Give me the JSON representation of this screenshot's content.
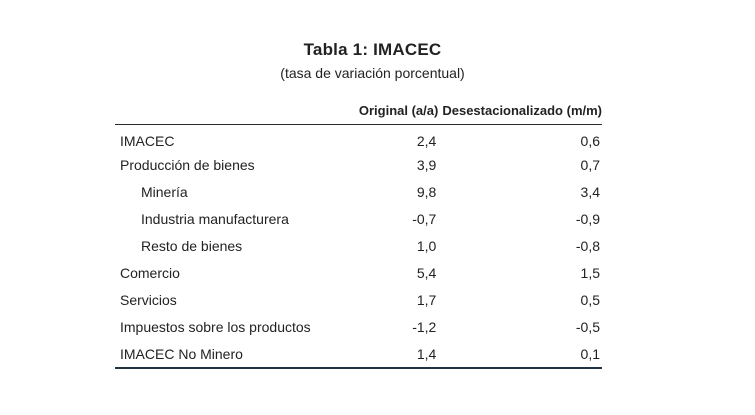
{
  "title": "Tabla 1:  IMACEC",
  "subtitle": "(tasa de variación porcentual)",
  "columns": {
    "label": "",
    "original": "Original (a/a)",
    "desestacionalizado": "Desestacionalizado (m/m)"
  },
  "rows": [
    {
      "label": "IMACEC",
      "original": "2,4",
      "desestacionalizado": "0,6",
      "indent": false
    },
    {
      "label": "Producción de bienes",
      "original": "3,9",
      "desestacionalizado": "0,7",
      "indent": false
    },
    {
      "label": "Minería",
      "original": "9,8",
      "desestacionalizado": "3,4",
      "indent": true
    },
    {
      "label": "Industria manufacturera",
      "original": "-0,7",
      "desestacionalizado": "-0,9",
      "indent": true
    },
    {
      "label": "Resto de bienes",
      "original": "1,0",
      "desestacionalizado": "-0,8",
      "indent": true
    },
    {
      "label": "Comercio",
      "original": "5,4",
      "desestacionalizado": "1,5",
      "indent": false
    },
    {
      "label": "Servicios",
      "original": "1,7",
      "desestacionalizado": "0,5",
      "indent": false
    },
    {
      "label": "Impuestos sobre los productos",
      "original": "-1,2",
      "desestacionalizado": "-0,5",
      "indent": false
    },
    {
      "label": "IMACEC No Minero",
      "original": "1,4",
      "desestacionalizado": "0,1",
      "indent": false
    }
  ]
}
